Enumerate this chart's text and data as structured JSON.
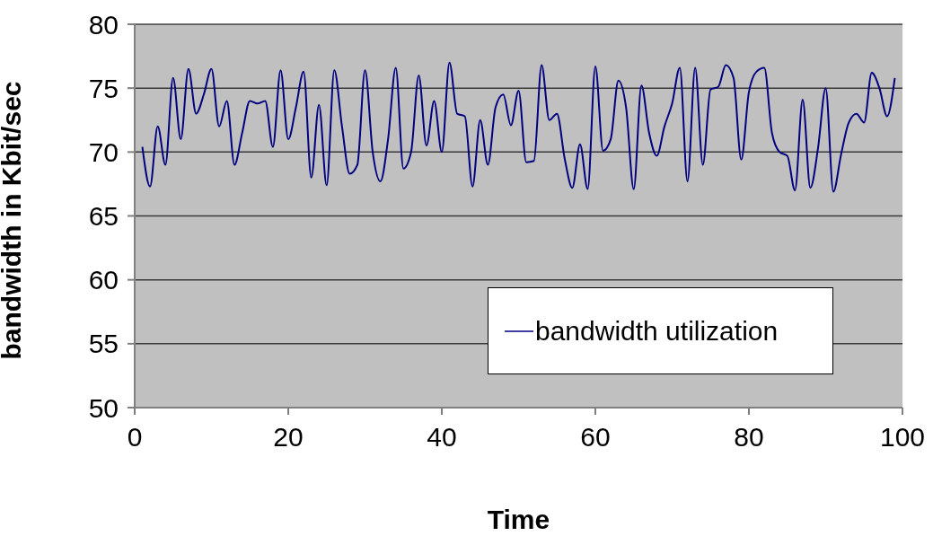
{
  "chart_data": {
    "type": "line",
    "xlabel": "Time",
    "ylabel": "bandwidth in Kbit/sec",
    "x": [
      1,
      2,
      3,
      4,
      5,
      6,
      7,
      8,
      9,
      10,
      11,
      12,
      13,
      14,
      15,
      16,
      17,
      18,
      19,
      20,
      21,
      22,
      23,
      24,
      25,
      26,
      27,
      28,
      29,
      30,
      31,
      32,
      33,
      34,
      35,
      36,
      37,
      38,
      39,
      40,
      41,
      42,
      43,
      44,
      45,
      46,
      47,
      48,
      49,
      50,
      51,
      52,
      53,
      54,
      55,
      56,
      57,
      58,
      59,
      60,
      61,
      62,
      63,
      64,
      65,
      66,
      67,
      68,
      69,
      70,
      71,
      72,
      73,
      74,
      75,
      76,
      77,
      78,
      79,
      80,
      81,
      82,
      83,
      84,
      85,
      86,
      87,
      88,
      89,
      90,
      91,
      92,
      93,
      94,
      95,
      96,
      97,
      98,
      99
    ],
    "series": [
      {
        "name": "bandwidth utilization",
        "color": "#000080",
        "values": [
          70.4,
          67.3,
          72.0,
          69.0,
          75.8,
          71.0,
          76.5,
          73.0,
          74.5,
          76.5,
          72.0,
          74.0,
          69.0,
          71.5,
          74.0,
          73.8,
          74.0,
          70.4,
          76.4,
          71.0,
          73.5,
          76.3,
          68.0,
          73.7,
          67.4,
          76.4,
          72.0,
          68.3,
          69.0,
          76.4,
          70.0,
          67.7,
          71.0,
          76.6,
          68.7,
          70.0,
          76.0,
          70.5,
          74.0,
          70.0,
          77.0,
          73.0,
          72.8,
          67.3,
          72.5,
          69.0,
          73.5,
          74.5,
          72.1,
          74.8,
          69.2,
          69.3,
          76.8,
          72.5,
          73.0,
          69.5,
          67.2,
          70.6,
          67.1,
          76.7,
          70.1,
          71.0,
          75.6,
          73.5,
          67.1,
          75.2,
          71.5,
          69.7,
          72.0,
          73.8,
          76.6,
          67.7,
          76.6,
          69.0,
          74.9,
          75.1,
          76.8,
          75.8,
          69.4,
          74.7,
          76.3,
          76.6,
          71.5,
          70.0,
          69.7,
          67.0,
          74.1,
          67.2,
          70.3,
          75.0,
          66.9,
          69.8,
          72.3,
          73.0,
          72.3,
          76.2,
          75.0,
          72.8,
          75.8
        ]
      }
    ],
    "xlim": [
      0,
      100
    ],
    "xticks": [
      0,
      20,
      40,
      60,
      80,
      100
    ],
    "ylim": [
      50,
      80
    ],
    "yticks": [
      50,
      55,
      60,
      65,
      70,
      75,
      80
    ],
    "grid": "y",
    "legend": "bottom right",
    "marker": "none",
    "line_style": "solid"
  }
}
